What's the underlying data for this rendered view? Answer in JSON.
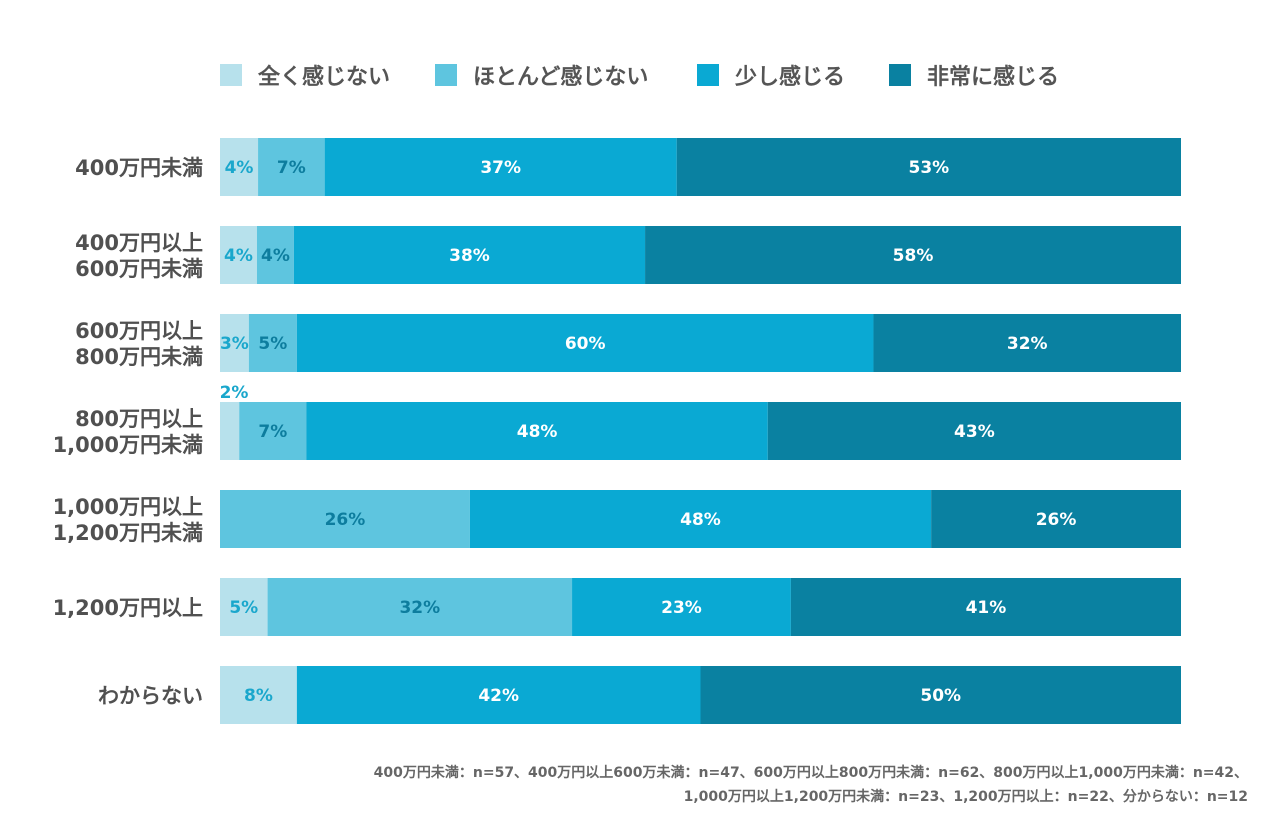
{
  "chart_data": {
    "type": "bar",
    "orientation": "horizontal",
    "stacked": true,
    "unit": "%",
    "categories": [
      [
        "400万円未満"
      ],
      [
        "400万円以上",
        "600万円未満"
      ],
      [
        "600万円以上",
        "800万円未満"
      ],
      [
        "800万円以上",
        "1,000万円未満"
      ],
      [
        "1,000万円以上",
        "1,200万円未満"
      ],
      [
        "1,200万円以上"
      ],
      [
        "わからない"
      ]
    ],
    "series": [
      {
        "name": "全く感じない",
        "color": "#b7e1ec",
        "label_color": "#1aa7cc",
        "values": [
          4,
          4,
          3,
          2,
          0,
          5,
          8
        ]
      },
      {
        "name": "ほとんど感じない",
        "color": "#5ec5df",
        "label_color": "#0d7d9e",
        "values": [
          7,
          4,
          5,
          7,
          26,
          32,
          0
        ]
      },
      {
        "name": "少し感じる",
        "color": "#0aa9d3",
        "label_color": "#ffffff",
        "values": [
          37,
          38,
          60,
          48,
          48,
          23,
          42
        ]
      },
      {
        "name": "非常に感じる",
        "color": "#0a81a1",
        "label_color": "#ffffff",
        "values": [
          53,
          58,
          32,
          43,
          26,
          41,
          50
        ]
      }
    ],
    "legend_position": "top",
    "grid": false
  },
  "notes": [
    "400万円未満：n=57、400万円以上600万未満：n=47、600万円以上800万円未満：n=62、800万円以上1,000万円未満：n=42、",
    "1,000万円以上1,200万円未満：n=23、1,200万円以上：n=22、分からない：n=12"
  ]
}
